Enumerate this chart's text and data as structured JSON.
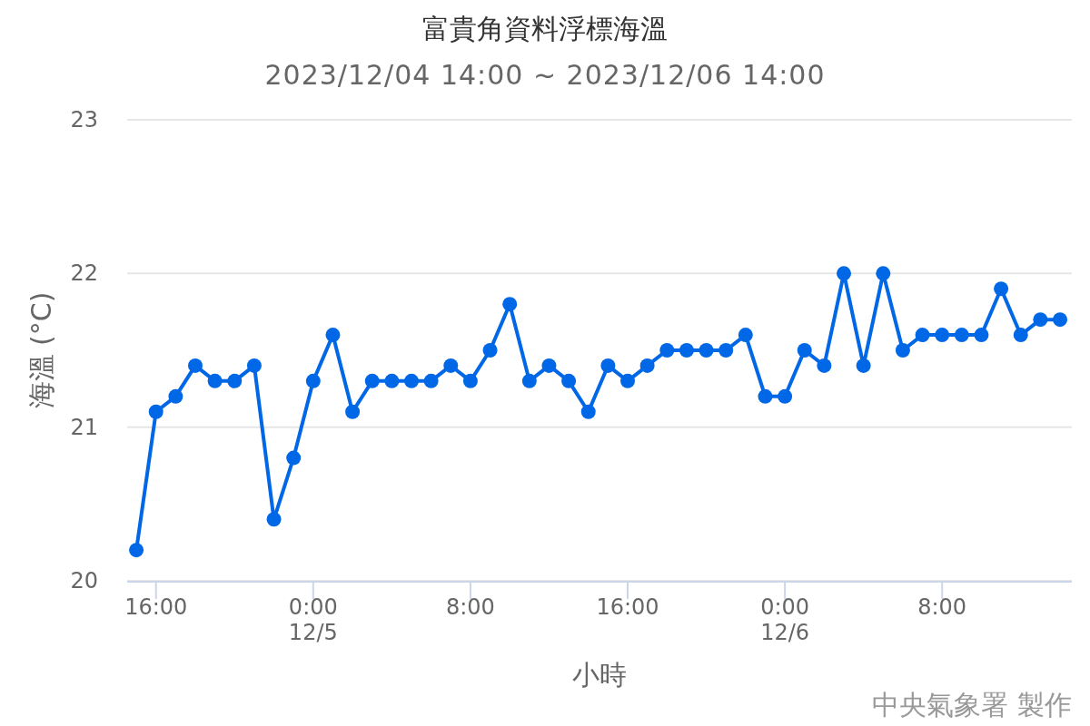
{
  "chart_data": {
    "type": "line",
    "title": "富貴角資料浮標海溫",
    "subtitle": "2023/12/04 14:00 ~ 2023/12/06 14:00",
    "xlabel": "小時",
    "ylabel": "海溫 (°C)",
    "annotations": [
      "中央氣象署 製作"
    ],
    "x": [
      "2023-12-04T15:00",
      "2023-12-04T16:00",
      "2023-12-04T17:00",
      "2023-12-04T18:00",
      "2023-12-04T19:00",
      "2023-12-04T20:00",
      "2023-12-04T21:00",
      "2023-12-04T22:00",
      "2023-12-04T23:00",
      "2023-12-05T00:00",
      "2023-12-05T01:00",
      "2023-12-05T02:00",
      "2023-12-05T03:00",
      "2023-12-05T04:00",
      "2023-12-05T05:00",
      "2023-12-05T06:00",
      "2023-12-05T07:00",
      "2023-12-05T08:00",
      "2023-12-05T09:00",
      "2023-12-05T10:00",
      "2023-12-05T11:00",
      "2023-12-05T12:00",
      "2023-12-05T13:00",
      "2023-12-05T14:00",
      "2023-12-05T15:00",
      "2023-12-05T16:00",
      "2023-12-05T17:00",
      "2023-12-05T18:00",
      "2023-12-05T19:00",
      "2023-12-05T20:00",
      "2023-12-05T21:00",
      "2023-12-05T22:00",
      "2023-12-05T23:00",
      "2023-12-06T00:00",
      "2023-12-06T01:00",
      "2023-12-06T02:00",
      "2023-12-06T03:00",
      "2023-12-06T04:00",
      "2023-12-06T05:00",
      "2023-12-06T06:00",
      "2023-12-06T07:00",
      "2023-12-06T08:00",
      "2023-12-06T09:00",
      "2023-12-06T10:00",
      "2023-12-06T11:00",
      "2023-12-06T12:00",
      "2023-12-06T13:00",
      "2023-12-06T14:00"
    ],
    "series": [
      {
        "color": "#0068e6",
        "values": [
          20.2,
          21.1,
          21.2,
          21.4,
          21.3,
          21.3,
          21.4,
          20.4,
          20.8,
          21.3,
          21.6,
          21.1,
          21.3,
          21.3,
          21.3,
          21.3,
          21.4,
          21.3,
          21.5,
          21.8,
          21.3,
          21.4,
          21.3,
          21.1,
          21.4,
          21.3,
          21.4,
          21.5,
          21.5,
          21.5,
          21.5,
          21.6,
          21.2,
          21.2,
          21.5,
          21.4,
          22.0,
          21.4,
          22.0,
          21.5,
          21.6,
          21.6,
          21.6,
          21.6,
          21.9,
          21.6,
          21.7,
          21.7
        ]
      }
    ],
    "xlim": [
      "2023-12-04T14:32",
      "2023-12-06T14:36"
    ],
    "xticks": [
      {
        "value": "2023-12-04T16:00",
        "label": "16:00"
      },
      {
        "value": "2023-12-05T00:00",
        "label": "0:00\n12/5"
      },
      {
        "value": "2023-12-05T08:00",
        "label": "8:00"
      },
      {
        "value": "2023-12-05T16:00",
        "label": "16:00"
      },
      {
        "value": "2023-12-06T00:00",
        "label": "0:00\n12/6"
      },
      {
        "value": "2023-12-06T08:00",
        "label": "8:00"
      }
    ],
    "ylim": [
      20,
      23
    ],
    "yticks": [
      20,
      21,
      22,
      23
    ],
    "grid": "y",
    "marker": "circle",
    "line_style": "solid"
  }
}
